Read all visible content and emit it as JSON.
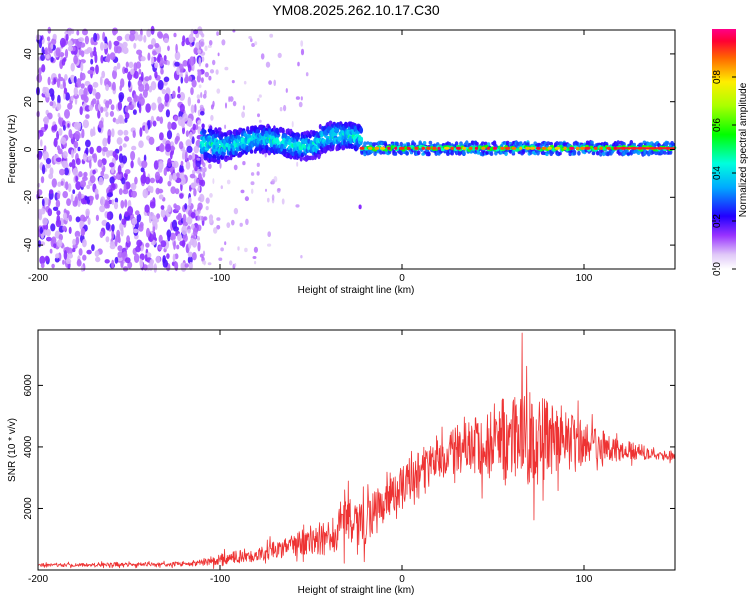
{
  "title": "YM08.2025.262.10.17.C30",
  "chart_data": [
    {
      "type": "heatmap",
      "xlabel": "Height of straight line (km)",
      "ylabel": "Frequency (Hz)",
      "xlim": [
        -200,
        150
      ],
      "ylim": [
        -50,
        50
      ],
      "x_ticks": [
        "-200",
        "-100",
        "0",
        "100"
      ],
      "y_ticks": [
        "40",
        "20",
        "0",
        "-20",
        "-40"
      ],
      "colorbar": {
        "label": "Normalized spectral amplitude",
        "range": [
          0,
          1
        ],
        "ticks": [
          "0.0",
          "0.2",
          "0.4",
          "0.6",
          "0.8"
        ]
      },
      "regions": [
        {
          "name": "broadband noise",
          "x_range": [
            -200,
            -110
          ],
          "freq_range": [
            -50,
            50
          ],
          "amplitude": "0.1-0.3"
        },
        {
          "name": "sparse scatter",
          "x_range": [
            -110,
            -90
          ],
          "freq_range": [
            -50,
            50
          ],
          "amplitude": "0.05-0.15"
        },
        {
          "name": "signal band",
          "x_range": [
            -110,
            -22
          ],
          "center_freq": 3,
          "half_width": 6,
          "amplitude": "0.2-0.5"
        },
        {
          "name": "narrow tone",
          "x_range": [
            -22,
            150
          ],
          "center_freq": 0.5,
          "half_width": 2,
          "amplitude": "0.5-1.0"
        }
      ]
    },
    {
      "type": "line",
      "xlabel": "Height of straight line (km)",
      "ylabel": "SNR (10 * v/v)",
      "xlim": [
        -200,
        150
      ],
      "ylim": [
        0,
        7800
      ],
      "x_ticks": [
        "-200",
        "-100",
        "0",
        "100"
      ],
      "y_ticks": [
        "2000",
        "4000",
        "6000"
      ],
      "series": [
        {
          "name": "SNR",
          "color": "#ee3333",
          "envelope_x": [
            -200,
            -150,
            -115,
            -100,
            -80,
            -60,
            -40,
            -30,
            -20,
            -10,
            0,
            10,
            20,
            30,
            40,
            50,
            60,
            70,
            80,
            90,
            100,
            110,
            120,
            130,
            140,
            150
          ],
          "envelope_mean": [
            150,
            180,
            200,
            350,
            500,
            800,
            1100,
            1500,
            1600,
            2000,
            2800,
            3200,
            3600,
            3900,
            4100,
            4200,
            4250,
            4250,
            4300,
            4200,
            4100,
            4000,
            3900,
            3850,
            3750,
            3700
          ],
          "envelope_spread": [
            60,
            70,
            80,
            200,
            250,
            400,
            700,
            900,
            900,
            800,
            700,
            600,
            700,
            900,
            1100,
            1400,
            1600,
            1700,
            1500,
            1100,
            800,
            600,
            400,
            300,
            200,
            150
          ],
          "peak": {
            "x": 66,
            "y": 7700
          }
        }
      ]
    }
  ]
}
